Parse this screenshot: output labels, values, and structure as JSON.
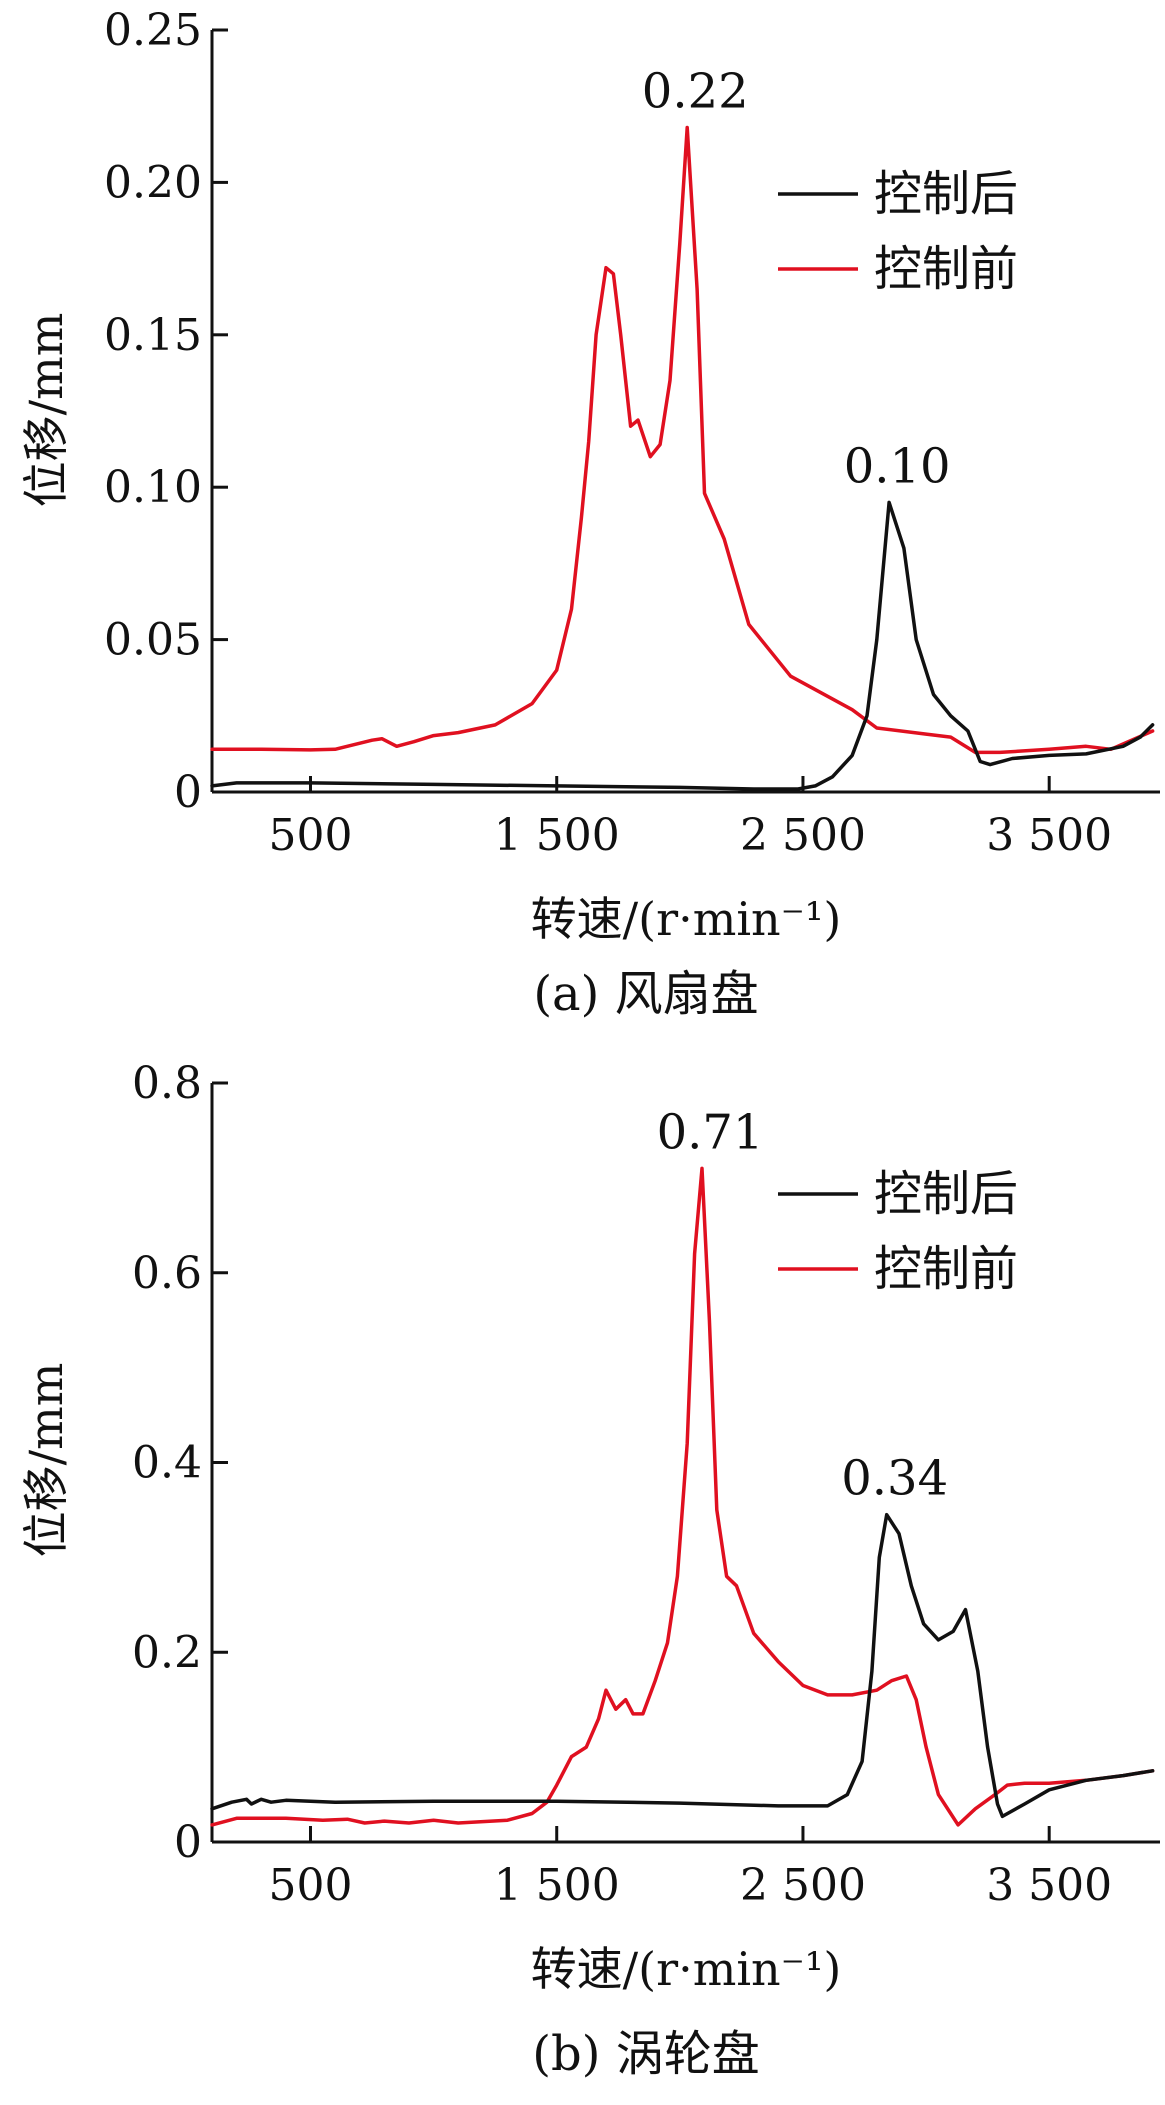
{
  "figure": {
    "panels": [
      {
        "caption": "(a)  风扇盘",
        "xlabel": "转速/(r·min⁻¹)",
        "ylabel": "位移/mm"
      },
      {
        "caption": "(b)  涡轮盘",
        "xlabel": "转速/(r·min⁻¹)",
        "ylabel": "位移/mm"
      }
    ]
  },
  "colors": {
    "after": "#111111",
    "before": "#e01020"
  },
  "chart_data": [
    {
      "type": "line",
      "title": "",
      "xlabel": "转速/(r·min⁻¹)",
      "ylabel": "位移/mm",
      "xlim": [
        100,
        3950
      ],
      "ylim": [
        0,
        0.25
      ],
      "x_ticks": [
        500,
        1500,
        2500,
        3500
      ],
      "x_tick_labels": [
        "500",
        "1 500",
        "2 500",
        "3 500"
      ],
      "y_ticks": [
        0,
        0.05,
        0.1,
        0.15,
        0.2,
        0.25
      ],
      "y_tick_labels": [
        "0",
        "0.05",
        "0.10",
        "0.15",
        "0.20",
        "0.25"
      ],
      "legend_position": "top-right",
      "grid": false,
      "series": [
        {
          "name": "控制后",
          "color": "#111111",
          "points": [
            [
              100,
              0.002
            ],
            [
              200,
              0.003
            ],
            [
              500,
              0.003
            ],
            [
              1000,
              0.0025
            ],
            [
              1500,
              0.002
            ],
            [
              2000,
              0.0015
            ],
            [
              2300,
              0.001
            ],
            [
              2480,
              0.001
            ],
            [
              2550,
              0.002
            ],
            [
              2620,
              0.005
            ],
            [
              2700,
              0.012
            ],
            [
              2760,
              0.025
            ],
            [
              2800,
              0.05
            ],
            [
              2850,
              0.095
            ],
            [
              2910,
              0.08
            ],
            [
              2960,
              0.05
            ],
            [
              3030,
              0.032
            ],
            [
              3100,
              0.025
            ],
            [
              3170,
              0.02
            ],
            [
              3220,
              0.01
            ],
            [
              3260,
              0.009
            ],
            [
              3350,
              0.011
            ],
            [
              3500,
              0.012
            ],
            [
              3650,
              0.0125
            ],
            [
              3800,
              0.015
            ],
            [
              3870,
              0.018
            ],
            [
              3920,
              0.022
            ]
          ]
        },
        {
          "name": "控制前",
          "color": "#e01020",
          "points": [
            [
              100,
              0.014
            ],
            [
              300,
              0.014
            ],
            [
              500,
              0.0138
            ],
            [
              600,
              0.014
            ],
            [
              750,
              0.017
            ],
            [
              790,
              0.0175
            ],
            [
              850,
              0.015
            ],
            [
              920,
              0.0165
            ],
            [
              1000,
              0.0185
            ],
            [
              1100,
              0.0195
            ],
            [
              1250,
              0.022
            ],
            [
              1400,
              0.029
            ],
            [
              1500,
              0.04
            ],
            [
              1560,
              0.06
            ],
            [
              1600,
              0.09
            ],
            [
              1630,
              0.115
            ],
            [
              1660,
              0.15
            ],
            [
              1700,
              0.172
            ],
            [
              1730,
              0.17
            ],
            [
              1760,
              0.15
            ],
            [
              1800,
              0.12
            ],
            [
              1830,
              0.122
            ],
            [
              1880,
              0.11
            ],
            [
              1920,
              0.114
            ],
            [
              1960,
              0.135
            ],
            [
              2000,
              0.18
            ],
            [
              2030,
              0.218
            ],
            [
              2070,
              0.165
            ],
            [
              2100,
              0.098
            ],
            [
              2180,
              0.083
            ],
            [
              2280,
              0.055
            ],
            [
              2450,
              0.038
            ],
            [
              2700,
              0.027
            ],
            [
              2800,
              0.021
            ],
            [
              3000,
              0.019
            ],
            [
              3100,
              0.018
            ],
            [
              3200,
              0.013
            ],
            [
              3300,
              0.013
            ],
            [
              3500,
              0.014
            ],
            [
              3650,
              0.015
            ],
            [
              3750,
              0.014
            ],
            [
              3920,
              0.02
            ]
          ]
        }
      ],
      "annotations": [
        {
          "text": "0.22",
          "x": 2030,
          "y": 0.218
        },
        {
          "text": "0.10",
          "x": 2850,
          "y": 0.095
        }
      ]
    },
    {
      "type": "line",
      "title": "",
      "xlabel": "转速/(r·min⁻¹)",
      "ylabel": "位移/mm",
      "xlim": [
        100,
        3950
      ],
      "ylim": [
        0,
        0.8
      ],
      "x_ticks": [
        500,
        1500,
        2500,
        3500
      ],
      "x_tick_labels": [
        "500",
        "1 500",
        "2 500",
        "3 500"
      ],
      "y_ticks": [
        0,
        0.2,
        0.4,
        0.6,
        0.8
      ],
      "y_tick_labels": [
        "0",
        "0.2",
        "0.4",
        "0.6",
        "0.8"
      ],
      "legend_position": "top-right",
      "grid": false,
      "series": [
        {
          "name": "控制后",
          "color": "#111111",
          "points": [
            [
              100,
              0.035
            ],
            [
              180,
              0.042
            ],
            [
              240,
              0.045
            ],
            [
              260,
              0.04
            ],
            [
              300,
              0.045
            ],
            [
              340,
              0.042
            ],
            [
              400,
              0.044
            ],
            [
              600,
              0.042
            ],
            [
              1000,
              0.043
            ],
            [
              1500,
              0.043
            ],
            [
              2000,
              0.041
            ],
            [
              2400,
              0.038
            ],
            [
              2600,
              0.038
            ],
            [
              2680,
              0.05
            ],
            [
              2740,
              0.085
            ],
            [
              2780,
              0.18
            ],
            [
              2810,
              0.3
            ],
            [
              2840,
              0.345
            ],
            [
              2890,
              0.325
            ],
            [
              2940,
              0.27
            ],
            [
              2990,
              0.23
            ],
            [
              3050,
              0.213
            ],
            [
              3110,
              0.222
            ],
            [
              3160,
              0.245
            ],
            [
              3210,
              0.18
            ],
            [
              3250,
              0.1
            ],
            [
              3290,
              0.04
            ],
            [
              3310,
              0.027
            ],
            [
              3400,
              0.04
            ],
            [
              3500,
              0.055
            ],
            [
              3650,
              0.065
            ],
            [
              3800,
              0.07
            ],
            [
              3920,
              0.075
            ]
          ]
        },
        {
          "name": "控制前",
          "color": "#e01020",
          "points": [
            [
              100,
              0.018
            ],
            [
              200,
              0.025
            ],
            [
              400,
              0.025
            ],
            [
              550,
              0.023
            ],
            [
              650,
              0.024
            ],
            [
              720,
              0.02
            ],
            [
              800,
              0.022
            ],
            [
              900,
              0.02
            ],
            [
              1000,
              0.023
            ],
            [
              1100,
              0.02
            ],
            [
              1300,
              0.023
            ],
            [
              1400,
              0.03
            ],
            [
              1460,
              0.042
            ],
            [
              1500,
              0.06
            ],
            [
              1560,
              0.09
            ],
            [
              1620,
              0.1
            ],
            [
              1670,
              0.13
            ],
            [
              1700,
              0.16
            ],
            [
              1740,
              0.14
            ],
            [
              1780,
              0.15
            ],
            [
              1810,
              0.135
            ],
            [
              1850,
              0.135
            ],
            [
              1900,
              0.17
            ],
            [
              1950,
              0.21
            ],
            [
              1990,
              0.28
            ],
            [
              2030,
              0.42
            ],
            [
              2060,
              0.62
            ],
            [
              2090,
              0.71
            ],
            [
              2120,
              0.55
            ],
            [
              2150,
              0.35
            ],
            [
              2190,
              0.28
            ],
            [
              2230,
              0.27
            ],
            [
              2300,
              0.22
            ],
            [
              2400,
              0.19
            ],
            [
              2500,
              0.165
            ],
            [
              2600,
              0.155
            ],
            [
              2700,
              0.155
            ],
            [
              2800,
              0.16
            ],
            [
              2860,
              0.17
            ],
            [
              2920,
              0.175
            ],
            [
              2960,
              0.15
            ],
            [
              3000,
              0.1
            ],
            [
              3050,
              0.05
            ],
            [
              3100,
              0.03
            ],
            [
              3130,
              0.018
            ],
            [
              3200,
              0.035
            ],
            [
              3280,
              0.05
            ],
            [
              3330,
              0.06
            ],
            [
              3400,
              0.062
            ],
            [
              3500,
              0.062
            ],
            [
              3650,
              0.065
            ],
            [
              3800,
              0.07
            ],
            [
              3920,
              0.075
            ]
          ]
        }
      ],
      "annotations": [
        {
          "text": "0.71",
          "x": 2090,
          "y": 0.71
        },
        {
          "text": "0.34",
          "x": 2840,
          "y": 0.345
        }
      ]
    }
  ]
}
